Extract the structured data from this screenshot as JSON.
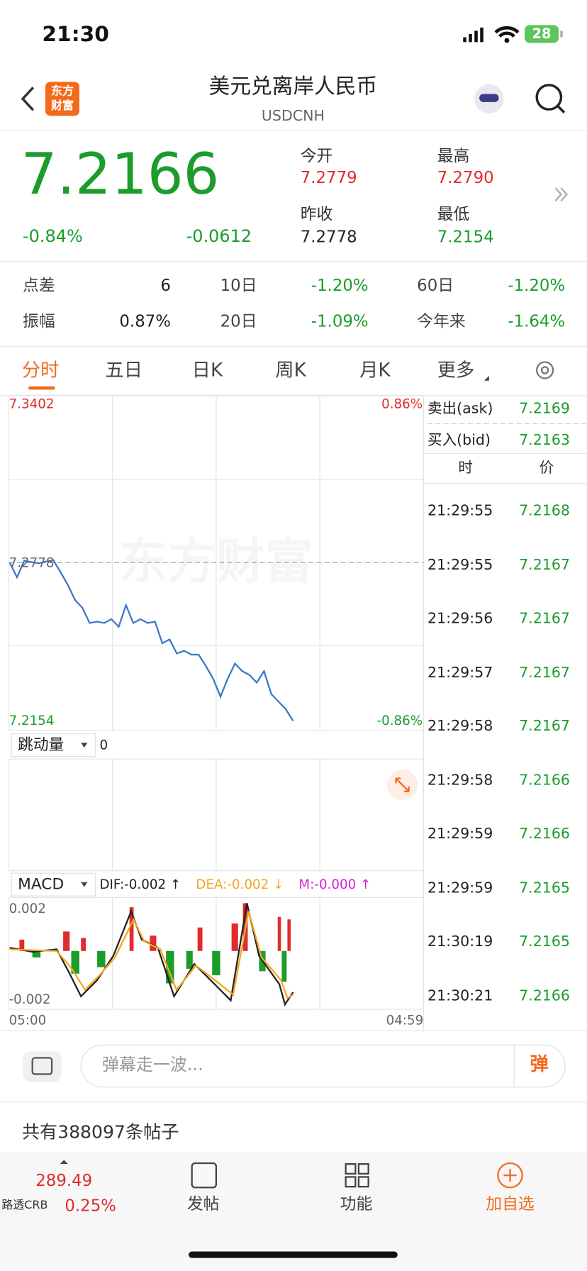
{
  "status": {
    "time": "21:30",
    "battery": "28"
  },
  "header": {
    "title": "美元兑离岸人民币",
    "code": "USDCNH",
    "logo": [
      "东方",
      "财富"
    ]
  },
  "quote": {
    "price": "7.2166",
    "change_pct": "-0.84%",
    "change": "-0.0612",
    "fields": [
      {
        "label": "今开",
        "value": "7.2779"
      },
      {
        "label": "最高",
        "value": "7.2790"
      },
      {
        "label": "昨收",
        "value": "7.2778"
      },
      {
        "label": "最低",
        "value": "7.2154"
      }
    ]
  },
  "stats": [
    [
      {
        "label": "点差",
        "value": "6"
      },
      {
        "label": "10日",
        "value": "-1.20%"
      },
      {
        "label": "60日",
        "value": "-1.20%"
      }
    ],
    [
      {
        "label": "振幅",
        "value": "0.87%"
      },
      {
        "label": "20日",
        "value": "-1.09%"
      },
      {
        "label": "今年来",
        "value": "-1.64%"
      }
    ]
  ],
  "tabs": [
    "分时",
    "五日",
    "日K",
    "周K",
    "月K",
    "更多"
  ],
  "chart": {
    "top": 7.3402,
    "bottom": 7.2154,
    "prev_close": 7.2778,
    "top_pct": "0.86%",
    "bottom_pct": "-0.86%",
    "watermark": "东方财富",
    "values": [
      7.2778,
      7.272,
      7.2785,
      7.278,
      7.2775,
      7.2782,
      7.2788,
      7.274,
      7.269,
      7.263,
      7.26,
      7.254,
      7.2545,
      7.254,
      7.2555,
      7.2525,
      7.261,
      7.254,
      7.2555,
      7.254,
      7.2545,
      7.246,
      7.2475,
      7.242,
      7.243,
      7.2415,
      7.2415,
      7.237,
      7.232,
      7.225,
      7.232,
      7.238,
      7.235,
      7.2335,
      7.2305,
      7.235,
      7.226,
      7.223,
      7.22,
      7.2154
    ],
    "volume_label": "跳动量",
    "volume_value": "0",
    "macd": {
      "label": "MACD",
      "dif": "DIF:-0.002 ↑",
      "dea": "DEA:-0.002 ↓",
      "m": "M:-0.000 ↑",
      "top": "0.002",
      "bottom": "-0.002"
    },
    "time_start": "05:00",
    "time_end": "04:59"
  },
  "book": {
    "ask_label": "卖出(ask)",
    "ask": "7.2169",
    "bid_label": "买入(bid)",
    "bid": "7.2163",
    "col_time": "时",
    "col_price": "价",
    "trades": [
      [
        "21:29:55",
        "7.2168"
      ],
      [
        "21:29:55",
        "7.2167"
      ],
      [
        "21:29:56",
        "7.2167"
      ],
      [
        "21:29:57",
        "7.2167"
      ],
      [
        "21:29:58",
        "7.2167"
      ],
      [
        "21:29:58",
        "7.2166"
      ],
      [
        "21:29:59",
        "7.2166"
      ],
      [
        "21:29:59",
        "7.2165"
      ],
      [
        "21:30:19",
        "7.2165"
      ],
      [
        "21:30:21",
        "7.2166"
      ]
    ]
  },
  "comment": {
    "placeholder": "弹幕走一波...",
    "button": "弹"
  },
  "posts": "共有388097条帖子",
  "footer": {
    "index_value": "289.49",
    "index_name": "路透CRB",
    "index_pct": "0.25%",
    "items": [
      "发帖",
      "功能",
      "加自选"
    ]
  }
}
